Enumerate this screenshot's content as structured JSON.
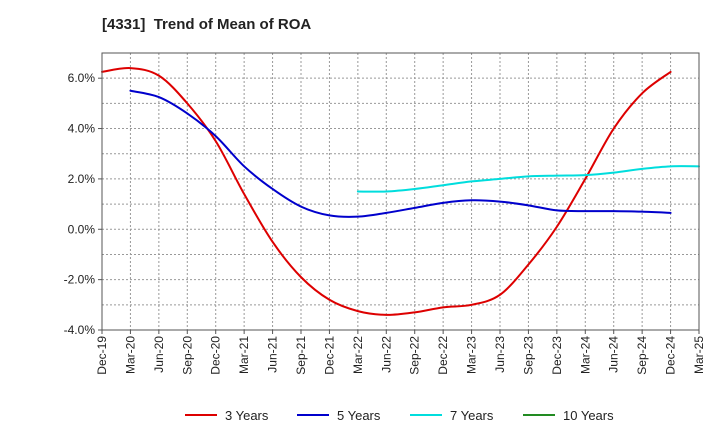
{
  "chart_data": {
    "type": "line",
    "title": "[4331]  Trend of Mean of ROA",
    "xlabel": "",
    "ylabel": "",
    "ylim": [
      -4.0,
      7.0
    ],
    "yticks": [
      6.0,
      4.0,
      2.0,
      0.0,
      -2.0,
      -4.0
    ],
    "ytick_labels": [
      "6.0%",
      "4.0%",
      "2.0%",
      "0.0%",
      "-2.0%",
      "-4.0%"
    ],
    "x_labels": [
      "Dec-19",
      "Mar-20",
      "Jun-20",
      "Sep-20",
      "Dec-20",
      "Mar-21",
      "Jun-21",
      "Sep-21",
      "Dec-21",
      "Mar-22",
      "Jun-22",
      "Sep-22",
      "Dec-22",
      "Mar-23",
      "Jun-23",
      "Sep-23",
      "Dec-23",
      "Mar-24",
      "Jun-24",
      "Sep-24",
      "Dec-24",
      "Mar-25"
    ],
    "grid": true,
    "legend_position": "bottom",
    "series": [
      {
        "name": "3 Years",
        "color": "#dd0000",
        "start_index": 0,
        "values": [
          6.25,
          6.4,
          6.1,
          5.0,
          3.5,
          1.4,
          -0.5,
          -1.9,
          -2.8,
          -3.25,
          -3.4,
          -3.3,
          -3.1,
          -3.0,
          -2.6,
          -1.4,
          0.1,
          2.0,
          4.0,
          5.4,
          6.25
        ]
      },
      {
        "name": "5 Years",
        "color": "#0000cc",
        "start_index": 1,
        "values": [
          5.5,
          5.25,
          4.6,
          3.7,
          2.5,
          1.6,
          0.9,
          0.55,
          0.5,
          0.65,
          0.85,
          1.05,
          1.15,
          1.1,
          0.95,
          0.75,
          0.72,
          0.72,
          0.7,
          0.65
        ]
      },
      {
        "name": "7 Years",
        "color": "#00dddd",
        "start_index": 9,
        "values": [
          1.5,
          1.5,
          1.6,
          1.75,
          1.9,
          2.0,
          2.1,
          2.13,
          2.15,
          2.25,
          2.4,
          2.5,
          2.5
        ]
      },
      {
        "name": "10 Years",
        "color": "#228b22",
        "start_index": 0,
        "values": []
      }
    ]
  }
}
